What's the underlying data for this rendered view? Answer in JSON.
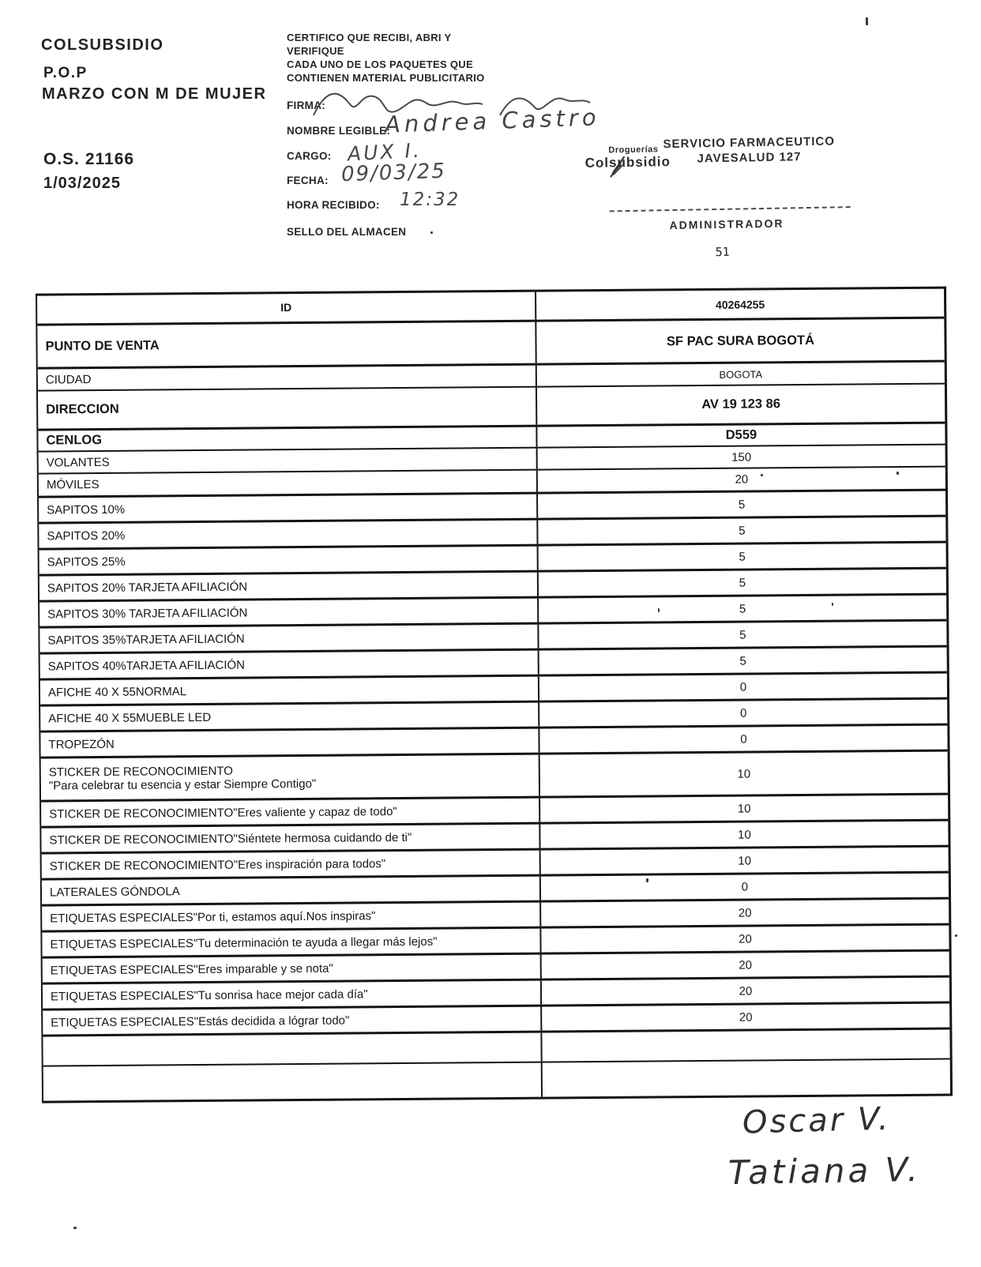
{
  "document": {
    "header_left": {
      "company": "COLSUBSIDIO",
      "program": "P.O.P",
      "campaign": "MARZO CON M DE MUJER",
      "order_number": "O.S. 21166",
      "date": "1/03/2025"
    },
    "certification": {
      "line1": "CERTIFICO QUE RECIBI, ABRI Y",
      "line2": "VERIFIQUE",
      "line3": "CADA UNO DE LOS PAQUETES QUE",
      "line4": "CONTIENEN MATERIAL PUBLICITARIO",
      "firma_label": "FIRMA:",
      "nombre_label": "NOMBRE LEGIBLE:",
      "nombre_value": "Andrea Castro",
      "cargo_label": "CARGO:",
      "cargo_value": "AUX I.",
      "fecha_label": "FECHA:",
      "fecha_value": "09/03/25",
      "hora_label": "HORA RECIBIDO:",
      "hora_value": "12:32",
      "sello_label": "SELLO DEL ALMACEN"
    },
    "stamp": {
      "brand_small": "Droguerías",
      "brand": "Colsubsidio",
      "service_line1": "SERVICIO FARMACEUTICO",
      "service_line2": "JAVESALUD 127",
      "role": "ADMINISTRADOR",
      "number": "51"
    },
    "table": {
      "rows": [
        {
          "label": "ID",
          "value": "40264255",
          "style": "id"
        },
        {
          "label": "PUNTO DE VENTA",
          "value": "SF PAC SURA BOGOTÁ",
          "style": "bold"
        },
        {
          "label": "CIUDAD",
          "value": "BOGOTA",
          "style": "plain"
        },
        {
          "label": "DIRECCION",
          "value": "AV 19 123 86",
          "style": "bold"
        },
        {
          "label": "CENLOG",
          "value": "D559",
          "style": "bold"
        },
        {
          "label": "VOLANTES",
          "value": "150"
        },
        {
          "label": "MÓVILES",
          "value": "20"
        },
        {
          "label": "SAPITOS 10%",
          "value": "5"
        },
        {
          "label": "SAPITOS 20%",
          "value": "5"
        },
        {
          "label": "SAPITOS 25%",
          "value": "5"
        },
        {
          "label": "SAPITOS 20% TARJETA AFILIACIÓN",
          "value": "5"
        },
        {
          "label": "SAPITOS 30% TARJETA AFILIACIÓN",
          "value": "5"
        },
        {
          "label": "SAPITOS 35%TARJETA AFILIACIÓN",
          "value": "5"
        },
        {
          "label": "SAPITOS 40%TARJETA AFILIACIÓN",
          "value": "5"
        },
        {
          "label": "AFICHE 40 X 55NORMAL",
          "value": "0"
        },
        {
          "label": "AFICHE 40 X 55MUEBLE LED",
          "value": "0"
        },
        {
          "label": "TROPEZÓN",
          "value": "0"
        },
        {
          "label": "STICKER DE RECONOCIMIENTO",
          "label2": "\"Para celebrar tu esencia y estar Siempre Contigo\"",
          "value": "10"
        },
        {
          "label": "STICKER DE RECONOCIMIENTO\"Eres valiente y capaz de todo\"",
          "value": "10"
        },
        {
          "label": "STICKER DE RECONOCIMIENTO\"Siéntete hermosa cuidando de ti\"",
          "value": "10"
        },
        {
          "label": "STICKER DE RECONOCIMIENTO\"Eres inspiración para todos\"",
          "value": "10"
        },
        {
          "label": "LATERALES GÓNDOLA",
          "value": "0"
        },
        {
          "label": "ETIQUETAS ESPECIALES\"Por ti, estamos aquí.Nos inspiras\"",
          "value": "20"
        },
        {
          "label": "ETIQUETAS ESPECIALES\"Tu determinación te ayuda a llegar más lejos\"",
          "value": "20"
        },
        {
          "label": "ETIQUETAS ESPECIALES\"Eres imparable y se nota\"",
          "value": "20"
        },
        {
          "label": "ETIQUETAS ESPECIALES\"Tu sonrisa hace mejor cada día\"",
          "value": "20"
        },
        {
          "label": "ETIQUETAS ESPECIALES\"Estás decidida a lógrar todo\"",
          "value": "20"
        },
        {
          "label": "",
          "value": ""
        },
        {
          "label": "",
          "value": ""
        }
      ]
    },
    "footer_signatures": [
      "Oscar V.",
      "Tatiana V."
    ]
  }
}
